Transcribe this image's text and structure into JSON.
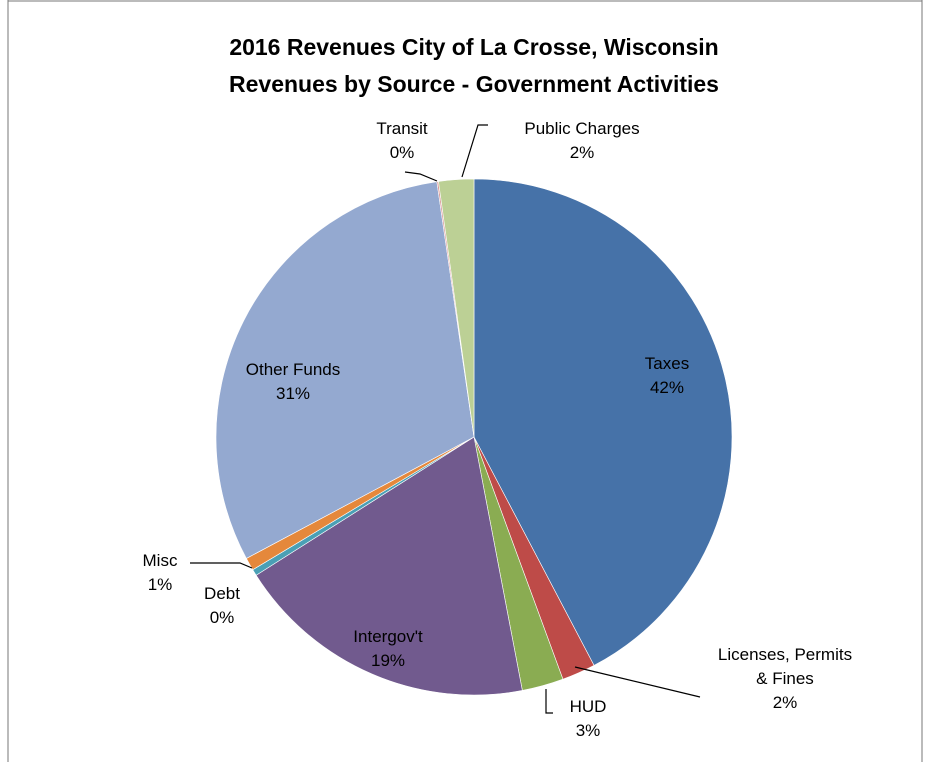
{
  "chart_data": {
    "type": "pie",
    "title": "2016 Revenues City of La Crosse, Wisconsin",
    "subtitle": "Revenues by Source - Government Activities",
    "categories": [
      "Taxes",
      "Licenses, Permits & Fines",
      "HUD",
      "Intergov't",
      "Debt",
      "Misc",
      "Other Funds",
      "Transit",
      "Public Charges"
    ],
    "values": [
      42.3,
      2.1,
      2.6,
      19.0,
      0.4,
      0.8,
      30.5,
      0.1,
      2.2
    ],
    "value_labels": [
      "42%",
      "2%",
      "3%",
      "19%",
      "0%",
      "1%",
      "31%",
      "0%",
      "2%"
    ],
    "colors": [
      "#4672a8",
      "#be4b48",
      "#8aac52",
      "#715a8e",
      "#4aa0b5",
      "#e5883b",
      "#94a9d0",
      "#d89795",
      "#bcd095"
    ]
  }
}
